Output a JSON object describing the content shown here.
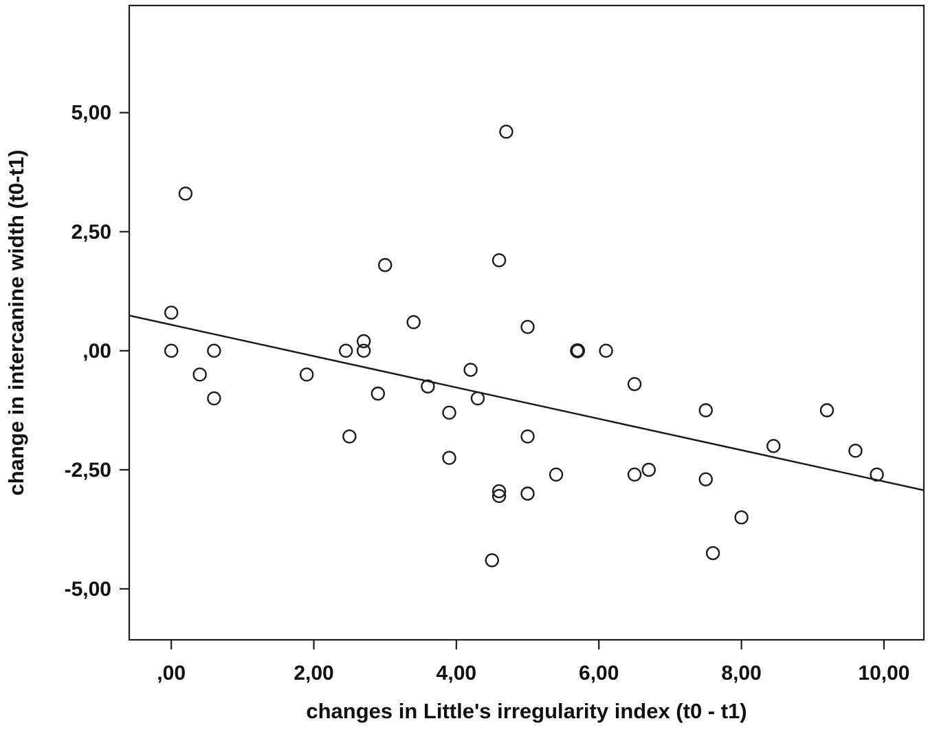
{
  "figure": {
    "background": "#ffffff"
  },
  "chart_data": {
    "type": "scatter",
    "title": "",
    "xlabel": "changes in Little's irregularity index (t0 - t1)",
    "ylabel": "change in intercanine width (t0-t1)",
    "xlim": [
      -0.59,
      10.56
    ],
    "ylim": [
      -6.07,
      7.25
    ],
    "grid": false,
    "legend": "none",
    "x_ticks": [
      {
        "value": 0,
        "label": ",00"
      },
      {
        "value": 2,
        "label": "2,00"
      },
      {
        "value": 4,
        "label": "4,00"
      },
      {
        "value": 6,
        "label": "6,00"
      },
      {
        "value": 8,
        "label": "8,00"
      },
      {
        "value": 10,
        "label": "10,00"
      }
    ],
    "y_ticks": [
      {
        "value": 5,
        "label": "5,00"
      },
      {
        "value": 2.5,
        "label": "2,50"
      },
      {
        "value": 0,
        "label": ",00"
      },
      {
        "value": -2.5,
        "label": "-2,50"
      },
      {
        "value": -5,
        "label": "-5,00"
      }
    ],
    "points": [
      {
        "x": 0.2,
        "y": 3.3
      },
      {
        "x": 0.0,
        "y": 0.8
      },
      {
        "x": 0.0,
        "y": 0.0
      },
      {
        "x": 0.6,
        "y": 0.0
      },
      {
        "x": 0.4,
        "y": -0.5
      },
      {
        "x": 0.6,
        "y": -1.0
      },
      {
        "x": 1.9,
        "y": -0.5
      },
      {
        "x": 2.45,
        "y": 0.0
      },
      {
        "x": 2.7,
        "y": 0.2
      },
      {
        "x": 2.7,
        "y": 0.0
      },
      {
        "x": 2.9,
        "y": -0.9
      },
      {
        "x": 2.5,
        "y": -1.8
      },
      {
        "x": 3.0,
        "y": 1.8
      },
      {
        "x": 3.4,
        "y": 0.6
      },
      {
        "x": 3.6,
        "y": -0.75
      },
      {
        "x": 3.9,
        "y": -1.3
      },
      {
        "x": 3.9,
        "y": -2.25
      },
      {
        "x": 4.2,
        "y": -0.4
      },
      {
        "x": 4.3,
        "y": -1.0
      },
      {
        "x": 4.5,
        "y": -4.4
      },
      {
        "x": 4.6,
        "y": -2.95
      },
      {
        "x": 4.6,
        "y": -3.05
      },
      {
        "x": 4.6,
        "y": 1.9
      },
      {
        "x": 4.7,
        "y": 4.6
      },
      {
        "x": 5.0,
        "y": 0.5
      },
      {
        "x": 5.0,
        "y": -1.8
      },
      {
        "x": 5.0,
        "y": -3.0
      },
      {
        "x": 5.4,
        "y": -2.6
      },
      {
        "x": 5.7,
        "y": 0.0,
        "bold": true
      },
      {
        "x": 6.1,
        "y": 0.0
      },
      {
        "x": 6.5,
        "y": -0.7
      },
      {
        "x": 6.5,
        "y": -2.6
      },
      {
        "x": 6.7,
        "y": -2.5
      },
      {
        "x": 7.5,
        "y": -1.25
      },
      {
        "x": 7.5,
        "y": -2.7
      },
      {
        "x": 7.6,
        "y": -4.25
      },
      {
        "x": 8.0,
        "y": -3.5
      },
      {
        "x": 8.45,
        "y": -2.0
      },
      {
        "x": 9.2,
        "y": -1.25
      },
      {
        "x": 9.6,
        "y": -2.1
      },
      {
        "x": 9.9,
        "y": -2.6
      }
    ],
    "regression_line": {
      "x1": -0.59,
      "y1": 0.74,
      "x2": 10.56,
      "y2": -2.93
    },
    "marker": {
      "shape": "circle",
      "radius_px": 9,
      "stroke_width": 2.4,
      "bold_stroke_width": 3.8,
      "fill": "none"
    },
    "colors": {
      "frame": "#1c1c1c",
      "marker": "#1c1c1c",
      "line": "#1c1c1c",
      "text": "#111111",
      "background": "#ffffff"
    }
  }
}
